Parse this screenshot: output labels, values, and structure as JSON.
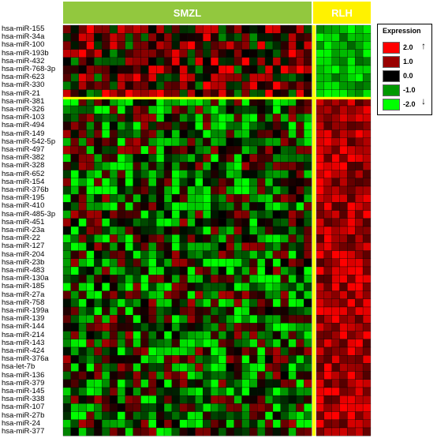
{
  "chart_data": {
    "type": "heatmap",
    "groups": [
      {
        "name": "SMZL",
        "color": "#92c83e"
      },
      {
        "name": "RLH",
        "color": "#fff200"
      }
    ],
    "rows": [
      "hsa-miR-155",
      "hsa-miR-34a",
      "hsa-miR-100",
      "hsa-miR-193b",
      "hsa-miR-432",
      "hsa-miR-768-3p",
      "hsa-miR-623",
      "hsa-miR-330",
      "hsa-miR-21",
      "hsa-miR-381",
      "hsa-miR-326",
      "hsa-miR-103",
      "hsa-miR-494",
      "hsa-miR-149",
      "hsa-miR-542-5p",
      "hsa-miR-497",
      "hsa-miR-382",
      "hsa-miR-328",
      "hsa-miR-652",
      "hsa-miR-154",
      "hsa-miR-376b",
      "hsa-miR-195",
      "hsa-miR-410",
      "hsa-miR-485-3p",
      "hsa-miR-451",
      "hsa-miR-23a",
      "hsa-miR-22",
      "hsa-miR-127",
      "hsa-miR-204",
      "hsa-miR-23b",
      "hsa-miR-483",
      "hsa-miR-130a",
      "hsa-miR-185",
      "hsa-miR-27a",
      "hsa-miR-758",
      "hsa-miR-199a",
      "hsa-miR-139",
      "hsa-miR-144",
      "hsa-miR-214",
      "hsa-miR-143",
      "hsa-miR-424",
      "hsa-miR-376a",
      "hsa-let-7b",
      "hsa-miR-136",
      "hsa-miR-379",
      "hsa-miR-145",
      "hsa-miR-338",
      "hsa-miR-107",
      "hsa-miR-27b",
      "hsa-miR-24",
      "hsa-miR-377"
    ],
    "n_upper_rows": 9,
    "n_smzl_columns": 32,
    "n_rlh_columns": 7,
    "expression_scale": [
      2.0,
      1.0,
      0.0,
      -1.0,
      -2.0
    ],
    "colors": {
      "high": "#ff0000",
      "mid": "#000000",
      "low": "#00ff00"
    }
  },
  "legend": {
    "title": "Expression",
    "items": [
      {
        "label": "2.0",
        "color": "#ff0000"
      },
      {
        "label": "1.0",
        "color": "#990000"
      },
      {
        "label": "0.0",
        "color": "#000000"
      },
      {
        "label": "-1.0",
        "color": "#009900"
      },
      {
        "label": "-2.0",
        "color": "#00ff00"
      }
    ]
  }
}
